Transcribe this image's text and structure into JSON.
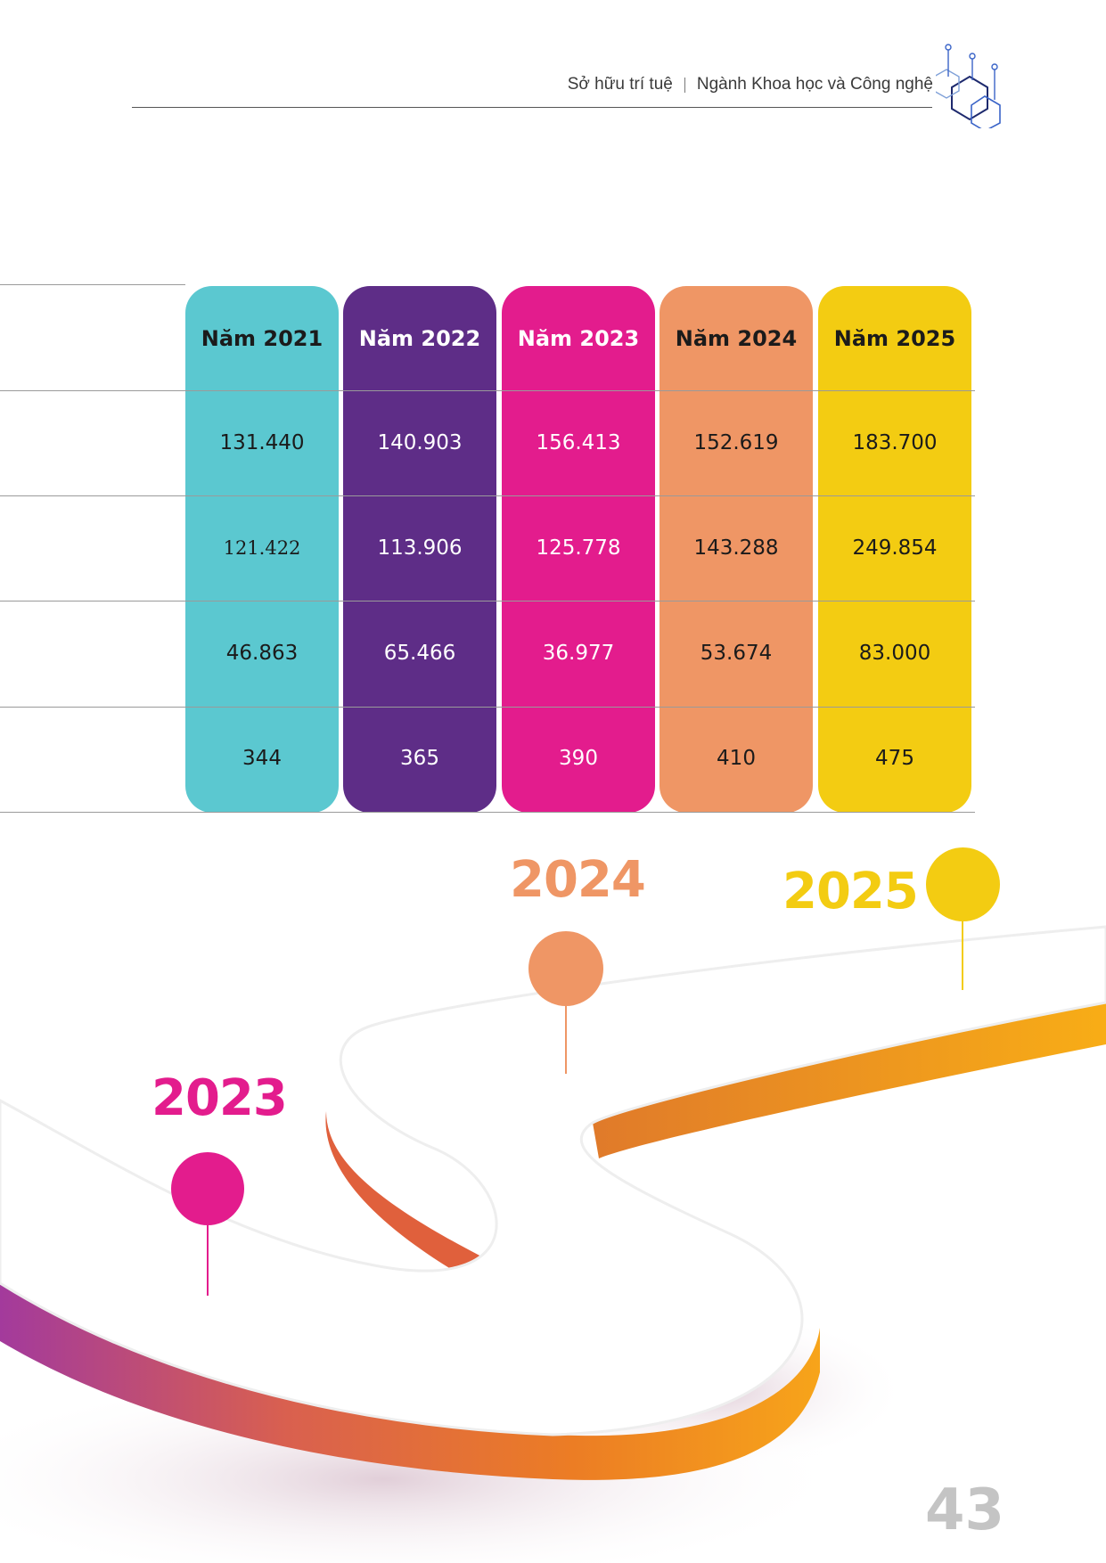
{
  "header": {
    "section": "Sở hữu trí tuệ",
    "chapter": "Ngành Khoa học và Công nghệ"
  },
  "table": {
    "columns": [
      {
        "label": "Năm 2021",
        "values": [
          "131.440",
          "121.422",
          "46.863",
          "344"
        ],
        "color": "#5BC8D0",
        "text_color": "#1b1b1b"
      },
      {
        "label": "Năm 2022",
        "values": [
          "140.903",
          "113.906",
          "65.466",
          "365"
        ],
        "color": "#5E2D87",
        "text_color": "#ffffff"
      },
      {
        "label": "Năm 2023",
        "values": [
          "156.413",
          "125.778",
          "36.977",
          "390"
        ],
        "color": "#E31C8D",
        "text_color": "#ffffff"
      },
      {
        "label": "Năm 2024",
        "values": [
          "152.619",
          "143.288",
          "53.674",
          "410"
        ],
        "color": "#EF9665",
        "text_color": "#1b1b1b"
      },
      {
        "label": "Năm 2025",
        "values": [
          "183.700",
          "249.854",
          "83.000",
          "475"
        ],
        "color": "#F3CC12",
        "text_color": "#1b1b1b"
      }
    ]
  },
  "timeline": {
    "markers": [
      {
        "year": "2023",
        "color": "#E31C8D"
      },
      {
        "year": "2024",
        "color": "#EF9665"
      },
      {
        "year": "2025",
        "color": "#F3CC12"
      }
    ]
  },
  "page_number": "43"
}
